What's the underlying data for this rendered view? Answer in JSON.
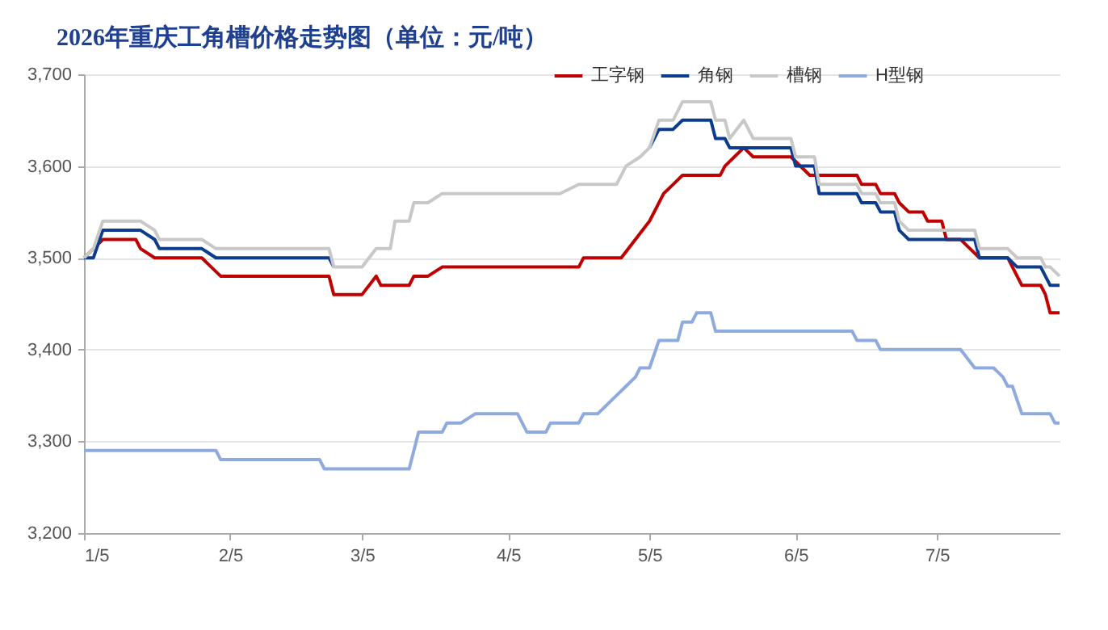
{
  "chart_data": {
    "type": "line",
    "title": "2026年重庆工角槽价格走势图（单位：元/吨）",
    "xlim": [
      "2026-01-05",
      "2026-07-31"
    ],
    "xticks": [
      {
        "value": "2026-01-05",
        "label": "1/5"
      },
      {
        "value": "2026-02-05",
        "label": "2/5"
      },
      {
        "value": "2026-03-05",
        "label": "3/5"
      },
      {
        "value": "2026-04-05",
        "label": "4/5"
      },
      {
        "value": "2026-05-05",
        "label": "5/5"
      },
      {
        "value": "2026-06-05",
        "label": "6/5"
      },
      {
        "value": "2026-07-05",
        "label": "7/5"
      }
    ],
    "ylim": [
      3200,
      3700
    ],
    "yticks": [
      {
        "value": 3200,
        "label": "3,200"
      },
      {
        "value": 3300,
        "label": "3,300"
      },
      {
        "value": 3400,
        "label": "3,400"
      },
      {
        "value": 3500,
        "label": "3,500"
      },
      {
        "value": 3600,
        "label": "3,600"
      },
      {
        "value": 3700,
        "label": "3,700"
      }
    ],
    "grid": "y",
    "legend": "top right",
    "marker": "none",
    "line_style": "solid",
    "series": [
      {
        "name": "工字钢",
        "color": "#c00000",
        "x": [
          "2026-01-05",
          "2026-01-07",
          "2026-01-09",
          "2026-01-16",
          "2026-01-17",
          "2026-01-20",
          "2026-01-30",
          "2026-02-01",
          "2026-02-03",
          "2026-02-26",
          "2026-02-27",
          "2026-03-05",
          "2026-03-08",
          "2026-03-09",
          "2026-03-15",
          "2026-03-16",
          "2026-03-19",
          "2026-03-22",
          "2026-04-20",
          "2026-04-21",
          "2026-04-29",
          "2026-05-05",
          "2026-05-08",
          "2026-05-10",
          "2026-05-12",
          "2026-05-20",
          "2026-05-21",
          "2026-05-23",
          "2026-05-25",
          "2026-05-27",
          "2026-06-04",
          "2026-06-08",
          "2026-06-18",
          "2026-06-19",
          "2026-06-22",
          "2026-06-23",
          "2026-06-26",
          "2026-06-27",
          "2026-06-29",
          "2026-07-02",
          "2026-07-03",
          "2026-07-06",
          "2026-07-07",
          "2026-07-10",
          "2026-07-12",
          "2026-07-14",
          "2026-07-20",
          "2026-07-22",
          "2026-07-23",
          "2026-07-27",
          "2026-07-28",
          "2026-07-29",
          "2026-07-31"
        ],
        "values": [
          3500,
          3510,
          3520,
          3520,
          3510,
          3500,
          3500,
          3490,
          3480,
          3480,
          3460,
          3460,
          3480,
          3470,
          3470,
          3480,
          3480,
          3490,
          3490,
          3500,
          3500,
          3540,
          3570,
          3580,
          3590,
          3590,
          3600,
          3610,
          3620,
          3610,
          3610,
          3590,
          3590,
          3580,
          3580,
          3570,
          3570,
          3560,
          3550,
          3550,
          3540,
          3540,
          3520,
          3520,
          3510,
          3500,
          3500,
          3480,
          3470,
          3470,
          3460,
          3440,
          3440
        ]
      },
      {
        "name": "角钢",
        "color": "#0b3d8c",
        "x": [
          "2026-01-05",
          "2026-01-07",
          "2026-01-09",
          "2026-01-17",
          "2026-01-20",
          "2026-01-21",
          "2026-01-30",
          "2026-02-02",
          "2026-02-26",
          "2026-02-27",
          "2026-03-05",
          "2026-03-08",
          "2026-03-11",
          "2026-03-12",
          "2026-03-15",
          "2026-03-16",
          "2026-03-19",
          "2026-03-22",
          "2026-04-16",
          "2026-04-20",
          "2026-04-28",
          "2026-04-30",
          "2026-05-03",
          "2026-05-05",
          "2026-05-07",
          "2026-05-10",
          "2026-05-12",
          "2026-05-18",
          "2026-05-19",
          "2026-05-21",
          "2026-05-22",
          "2026-06-04",
          "2026-06-05",
          "2026-06-09",
          "2026-06-10",
          "2026-06-18",
          "2026-06-19",
          "2026-06-22",
          "2026-06-23",
          "2026-06-26",
          "2026-06-27",
          "2026-06-29",
          "2026-07-13",
          "2026-07-14",
          "2026-07-20",
          "2026-07-22",
          "2026-07-27",
          "2026-07-28",
          "2026-07-29",
          "2026-07-31"
        ],
        "values": [
          3500,
          3500,
          3530,
          3530,
          3520,
          3510,
          3510,
          3500,
          3500,
          3490,
          null,
          null,
          null,
          null,
          null,
          null,
          null,
          null,
          null,
          null,
          null,
          null,
          null,
          3620,
          3640,
          3640,
          3650,
          3650,
          3630,
          3630,
          3620,
          3620,
          3600,
          3600,
          3570,
          3570,
          3560,
          3560,
          3550,
          3550,
          3530,
          3520,
          3520,
          3500,
          3500,
          3490,
          3490,
          3480,
          3470,
          3470
        ]
      },
      {
        "name": "槽钢",
        "color": "#c8c8c8",
        "x": [
          "2026-01-05",
          "2026-01-07",
          "2026-01-09",
          "2026-01-17",
          "2026-01-20",
          "2026-01-21",
          "2026-01-30",
          "2026-02-02",
          "2026-02-26",
          "2026-02-27",
          "2026-03-05",
          "2026-03-08",
          "2026-03-11",
          "2026-03-12",
          "2026-03-15",
          "2026-03-16",
          "2026-03-19",
          "2026-03-22",
          "2026-04-16",
          "2026-04-20",
          "2026-04-28",
          "2026-04-30",
          "2026-05-03",
          "2026-05-05",
          "2026-05-07",
          "2026-05-10",
          "2026-05-12",
          "2026-05-18",
          "2026-05-19",
          "2026-05-21",
          "2026-05-22",
          "2026-05-25",
          "2026-05-27",
          "2026-06-04",
          "2026-06-05",
          "2026-06-09",
          "2026-06-10",
          "2026-06-18",
          "2026-06-19",
          "2026-06-22",
          "2026-06-23",
          "2026-06-26",
          "2026-06-27",
          "2026-06-29",
          "2026-07-13",
          "2026-07-14",
          "2026-07-20",
          "2026-07-22",
          "2026-07-27",
          "2026-07-28",
          "2026-07-29",
          "2026-07-31"
        ],
        "values": [
          3500,
          3510,
          3540,
          3540,
          3530,
          3520,
          3520,
          3510,
          3510,
          3490,
          3490,
          3510,
          3510,
          3540,
          3540,
          3560,
          3560,
          3570,
          3570,
          3580,
          3580,
          3600,
          3610,
          3620,
          3650,
          3650,
          3670,
          3670,
          3650,
          3650,
          3630,
          3650,
          3630,
          3630,
          3610,
          3610,
          3580,
          3580,
          3570,
          3570,
          3560,
          3560,
          3540,
          3530,
          3530,
          3510,
          3510,
          3500,
          3500,
          3490,
          3490,
          3480
        ]
      },
      {
        "name": "H型钢",
        "color": "#8faadc",
        "x": [
          "2026-01-05",
          "2026-02-02",
          "2026-02-03",
          "2026-02-24",
          "2026-02-25",
          "2026-03-15",
          "2026-03-17",
          "2026-03-22",
          "2026-03-23",
          "2026-03-26",
          "2026-03-29",
          "2026-04-07",
          "2026-04-09",
          "2026-04-13",
          "2026-04-14",
          "2026-04-20",
          "2026-04-21",
          "2026-04-24",
          "2026-04-26",
          "2026-04-28",
          "2026-04-30",
          "2026-05-02",
          "2026-05-03",
          "2026-05-05",
          "2026-05-07",
          "2026-05-11",
          "2026-05-12",
          "2026-05-14",
          "2026-05-15",
          "2026-05-18",
          "2026-05-19",
          "2026-06-17",
          "2026-06-18",
          "2026-06-22",
          "2026-06-23",
          "2026-07-10",
          "2026-07-13",
          "2026-07-17",
          "2026-07-19",
          "2026-07-20",
          "2026-07-21",
          "2026-07-23",
          "2026-07-29",
          "2026-07-30",
          "2026-07-31"
        ],
        "values": [
          3290,
          3290,
          3280,
          3280,
          3270,
          3270,
          3310,
          3310,
          3320,
          3320,
          3330,
          3330,
          3310,
          3310,
          3320,
          3320,
          3330,
          3330,
          3340,
          3350,
          3360,
          3370,
          3380,
          3380,
          3410,
          3410,
          3430,
          3430,
          3440,
          3440,
          3420,
          3420,
          3410,
          3410,
          3400,
          3400,
          3380,
          3380,
          3370,
          3360,
          3360,
          3330,
          3330,
          3320,
          3320
        ]
      }
    ]
  }
}
